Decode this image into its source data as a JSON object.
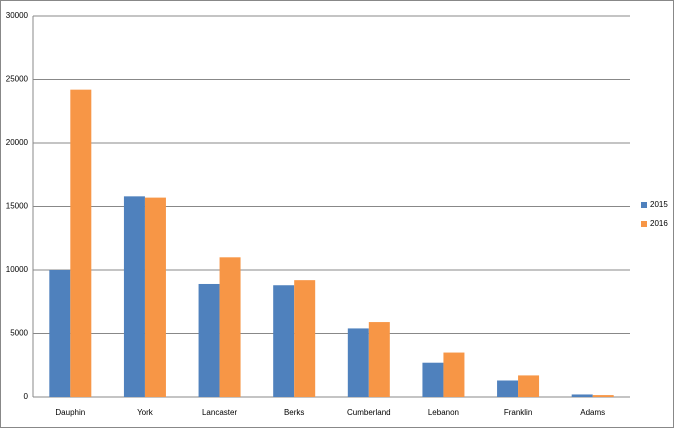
{
  "chart_data": {
    "type": "bar",
    "categories": [
      "Dauphin",
      "York",
      "Lancaster",
      "Berks",
      "Cumberland",
      "Lebanon",
      "Franklin",
      "Adams"
    ],
    "series": [
      {
        "name": "2015",
        "color": "#4f81bd",
        "values": [
          10000,
          15800,
          8900,
          8800,
          5400,
          2700,
          1300,
          200
        ]
      },
      {
        "name": "2016",
        "color": "#f79646",
        "values": [
          24200,
          15700,
          11000,
          9200,
          5900,
          3500,
          1700,
          150
        ]
      }
    ],
    "ylim": [
      0,
      30000
    ],
    "yticks": [
      0,
      5000,
      10000,
      15000,
      20000,
      25000,
      30000
    ],
    "grid": true,
    "legend": "right"
  }
}
